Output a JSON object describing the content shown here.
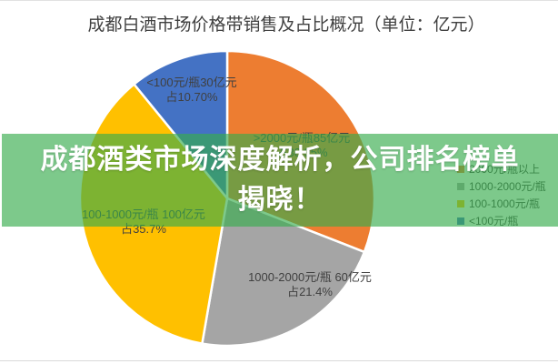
{
  "title": "成都白酒市场价格带销售及占比概况（单位：亿元）",
  "overlay_banner": {
    "line1": "成都酒类市场深度解析，公司排名榜单",
    "line2": "揭晓！",
    "background_color": "#38AC4D",
    "background_opacity": 0.65,
    "text_color": "#ffffff"
  },
  "chart_data": {
    "type": "pie",
    "title": "成都白酒市场价格带销售及占比概况",
    "unit": "亿元",
    "legend_position": "right",
    "start_angle": "12-oclock",
    "direction": "clockwise",
    "slices": [
      {
        "label": "2000元/瓶以上",
        "value": 85,
        "pct_num": 30.35,
        "color": "#ED7D31",
        "data_label": ">2000元/瓶85亿元",
        "pct_label": "占30.35%"
      },
      {
        "label": "1000-2000元/瓶",
        "value": 60,
        "pct_num": 21.4,
        "color": "#A5A5A5",
        "data_label": "1000-2000元/瓶 60亿元",
        "pct_label": "占21.4%"
      },
      {
        "label": "100-1000元/瓶",
        "value": 100,
        "pct_num": 35.7,
        "color": "#FFC000",
        "data_label": "100-1000元/瓶 100亿元",
        "pct_label": "占35.7%"
      },
      {
        "label": "<100元/瓶",
        "value": 30,
        "pct_num": 10.7,
        "color": "#4472C4",
        "data_label": "<100元/瓶30亿元",
        "pct_label": "占10.70%"
      }
    ]
  }
}
